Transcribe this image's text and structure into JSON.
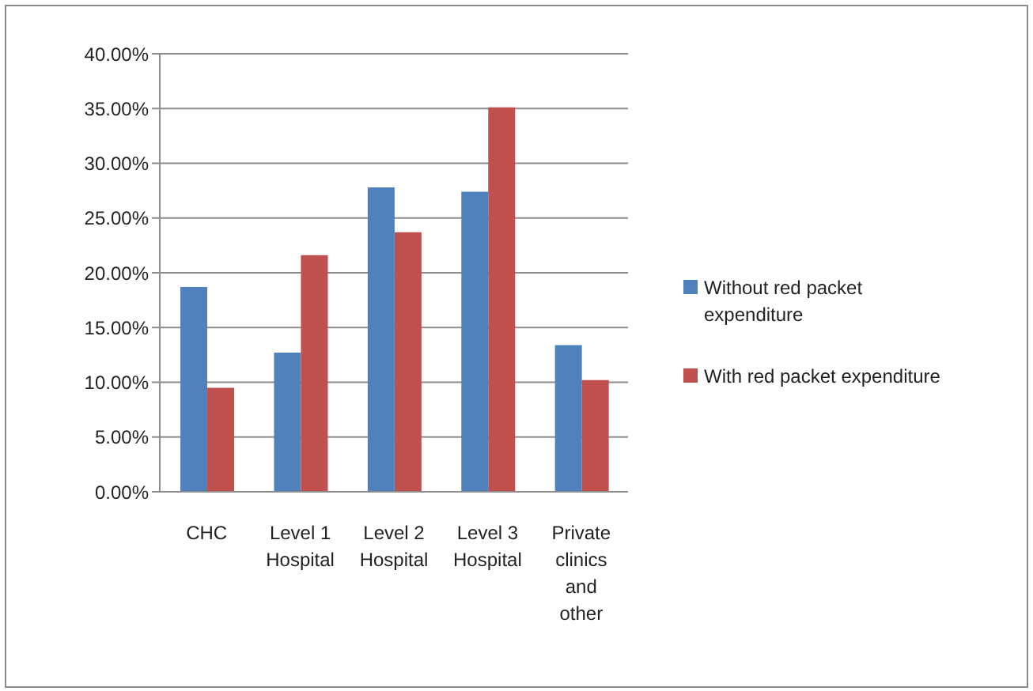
{
  "chart_data": {
    "type": "bar",
    "categories": [
      "CHC",
      "Level 1 Hospital",
      "Level 2 Hospital",
      "Level 3 Hospital",
      "Private clinics and other"
    ],
    "series": [
      {
        "name": "Without red packet expenditure",
        "color": "#4f81bd",
        "values": [
          18.7,
          12.7,
          27.8,
          27.4,
          13.4
        ]
      },
      {
        "name": "With red packet expenditure",
        "color": "#c0504d",
        "values": [
          9.5,
          21.6,
          23.7,
          35.1,
          10.2
        ]
      }
    ],
    "ylim": [
      0,
      40
    ],
    "yticks": [
      {
        "value": 0,
        "label": "0.00%"
      },
      {
        "value": 5,
        "label": "5.00%"
      },
      {
        "value": 10,
        "label": "10.00%"
      },
      {
        "value": 15,
        "label": "15.00%"
      },
      {
        "value": 20,
        "label": "20.00%"
      },
      {
        "value": 25,
        "label": "25.00%"
      },
      {
        "value": 30,
        "label": "30.00%"
      },
      {
        "value": 35,
        "label": "35.00%"
      },
      {
        "value": 40,
        "label": "40.00%"
      }
    ],
    "grid": "y",
    "legend": "right"
  }
}
